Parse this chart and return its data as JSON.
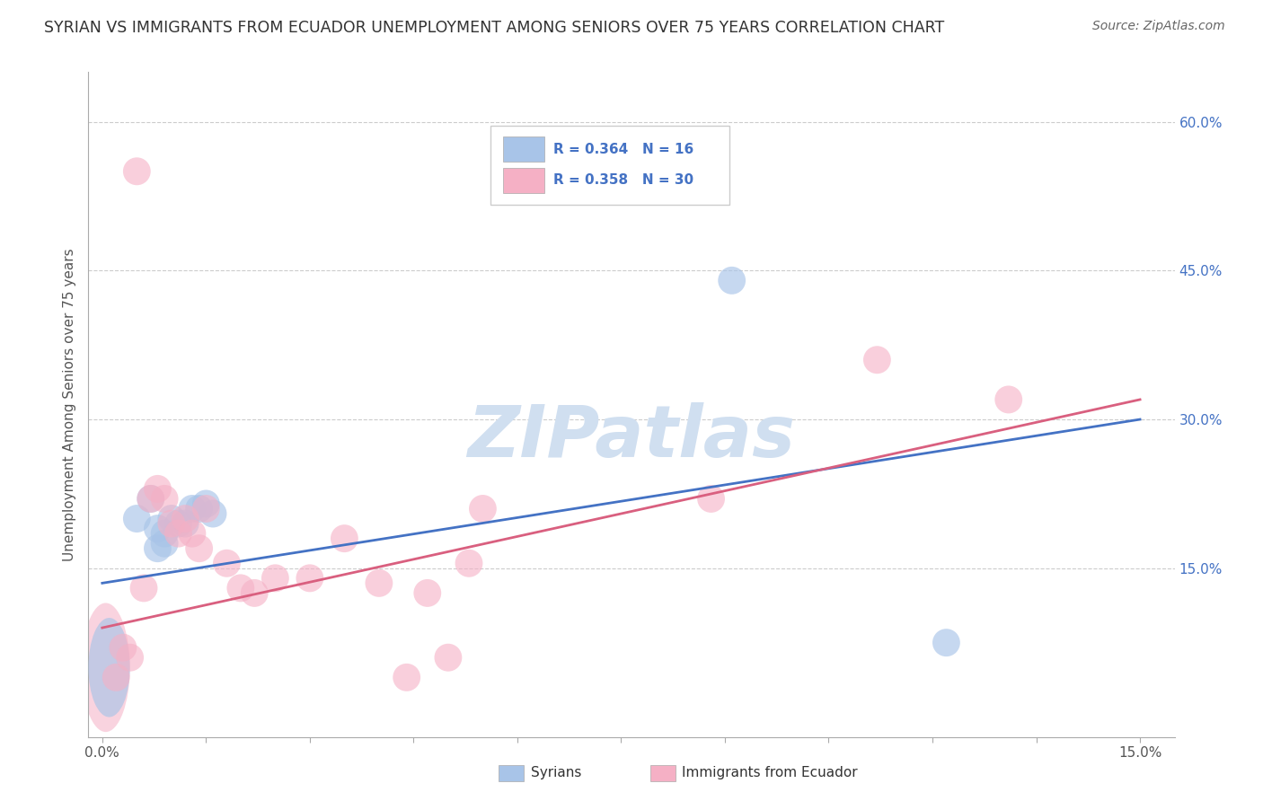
{
  "title": "SYRIAN VS IMMIGRANTS FROM ECUADOR UNEMPLOYMENT AMONG SENIORS OVER 75 YEARS CORRELATION CHART",
  "source": "Source: ZipAtlas.com",
  "ylabel": "Unemployment Among Seniors over 75 years",
  "xlim": [
    -0.002,
    0.155
  ],
  "ylim": [
    -0.02,
    0.65
  ],
  "x_ticks": [
    0.0,
    0.015,
    0.03,
    0.045,
    0.06,
    0.075,
    0.09,
    0.105,
    0.12,
    0.135,
    0.15
  ],
  "x_tick_labels": [
    "0.0%",
    "",
    "",
    "",
    "",
    "",
    "",
    "",
    "",
    "",
    "15.0%"
  ],
  "y_ticks": [
    0.0,
    0.15,
    0.3,
    0.45,
    0.6
  ],
  "y_tick_labels": [
    "",
    "15.0%",
    "30.0%",
    "45.0%",
    "60.0%"
  ],
  "syrians_R": 0.364,
  "syrians_N": 16,
  "ecuador_R": 0.358,
  "ecuador_N": 30,
  "color_syrian": "#a8c4e8",
  "color_ecuador": "#f5b0c5",
  "color_syrian_line": "#4472c4",
  "color_ecuador_line": "#d95f7f",
  "watermark": "ZIPatlas",
  "watermark_color": "#d0dff0",
  "grid_color": "#cccccc",
  "title_color": "#333333",
  "legend_color": "#4472c4",
  "syrians_x": [
    0.001,
    0.005,
    0.007,
    0.008,
    0.008,
    0.009,
    0.009,
    0.01,
    0.011,
    0.012,
    0.013,
    0.014,
    0.015,
    0.016,
    0.091,
    0.122
  ],
  "syrians_y": [
    0.05,
    0.2,
    0.22,
    0.17,
    0.19,
    0.175,
    0.185,
    0.2,
    0.195,
    0.195,
    0.21,
    0.21,
    0.215,
    0.205,
    0.44,
    0.075
  ],
  "ecuador_x": [
    0.001,
    0.002,
    0.003,
    0.004,
    0.005,
    0.006,
    0.007,
    0.008,
    0.009,
    0.01,
    0.011,
    0.012,
    0.013,
    0.014,
    0.015,
    0.018,
    0.02,
    0.022,
    0.025,
    0.03,
    0.035,
    0.04,
    0.044,
    0.047,
    0.05,
    0.053,
    0.055,
    0.088,
    0.112,
    0.131
  ],
  "ecuador_y": [
    0.05,
    0.04,
    0.07,
    0.06,
    0.55,
    0.13,
    0.22,
    0.23,
    0.22,
    0.195,
    0.185,
    0.2,
    0.185,
    0.17,
    0.21,
    0.155,
    0.13,
    0.125,
    0.14,
    0.14,
    0.18,
    0.135,
    0.04,
    0.125,
    0.06,
    0.155,
    0.21,
    0.22,
    0.36,
    0.32
  ],
  "figsize": [
    14.06,
    8.92
  ],
  "dpi": 100
}
